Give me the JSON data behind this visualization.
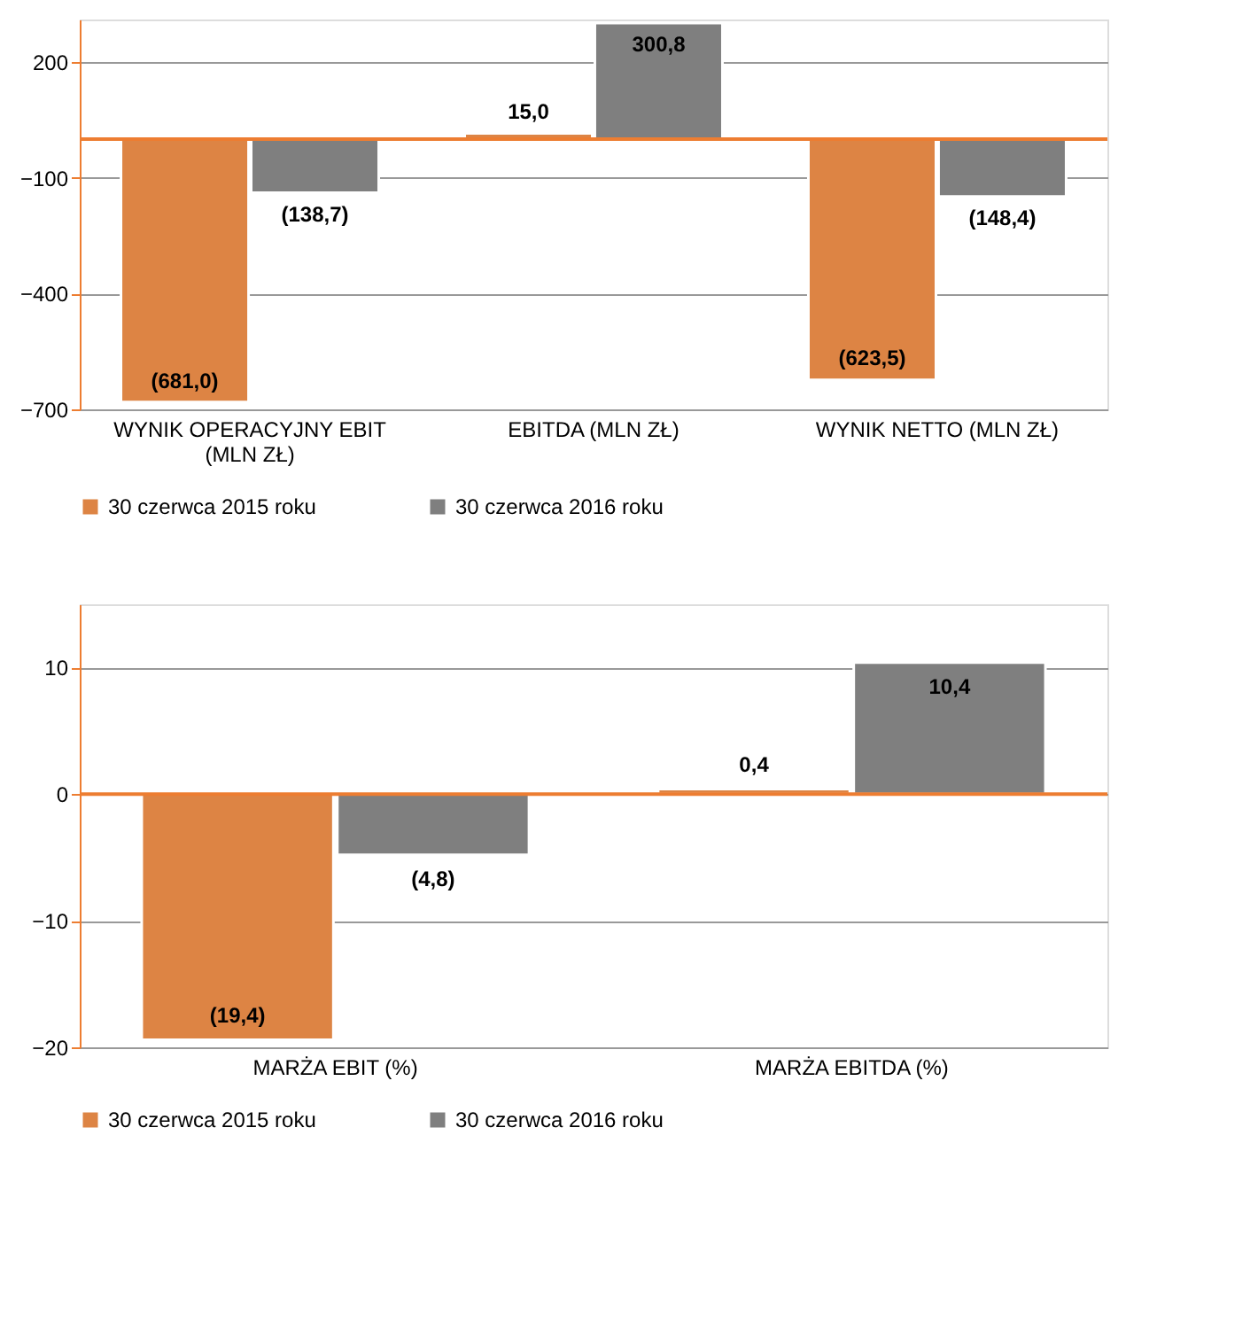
{
  "chart_data": [
    {
      "type": "bar",
      "categories": [
        "WYNIK OPERACYJNY EBIT (MLN ZŁ)",
        "EBITDA (MLN ZŁ)",
        "WYNIK NETTO (MLN ZŁ)"
      ],
      "series": [
        {
          "name": "30 czerwca 2015 roku",
          "color": "#dd8444",
          "values": [
            -681.0,
            15.0,
            -623.5
          ],
          "value_labels": [
            "(681,0)",
            "15,0",
            "(623,5)"
          ]
        },
        {
          "name": "30 czerwca 2016 roku",
          "color": "#7f7f7f",
          "values": [
            -138.7,
            300.8,
            -148.4
          ],
          "value_labels": [
            "(138,7)",
            "300,8",
            "(148,4)"
          ]
        }
      ],
      "ylim": [
        -700,
        310
      ],
      "yticks": [
        -700,
        -400,
        -100,
        200
      ],
      "grid": "y",
      "legend": "bottom",
      "ref_lines": [
        {
          "axis": "y",
          "value": 0,
          "color": "#ed7d31"
        }
      ]
    },
    {
      "type": "bar",
      "categories": [
        "MARŻA EBIT (%)",
        "MARŻA EBITDA (%)"
      ],
      "series": [
        {
          "name": "30 czerwca 2015 roku",
          "color": "#dd8444",
          "values": [
            -19.4,
            0.4
          ],
          "value_labels": [
            "(19,4)",
            "0,4"
          ]
        },
        {
          "name": "30 czerwca 2016 roku",
          "color": "#7f7f7f",
          "values": [
            -4.8,
            10.4
          ],
          "value_labels": [
            "(4,8)",
            "10,4"
          ]
        }
      ],
      "ylim": [
        -20,
        15
      ],
      "yticks": [
        -20,
        -10,
        0,
        10
      ],
      "grid": "y",
      "legend": "bottom",
      "ref_lines": [
        {
          "axis": "y",
          "value": 0,
          "color": "#ed7d31"
        }
      ]
    }
  ]
}
